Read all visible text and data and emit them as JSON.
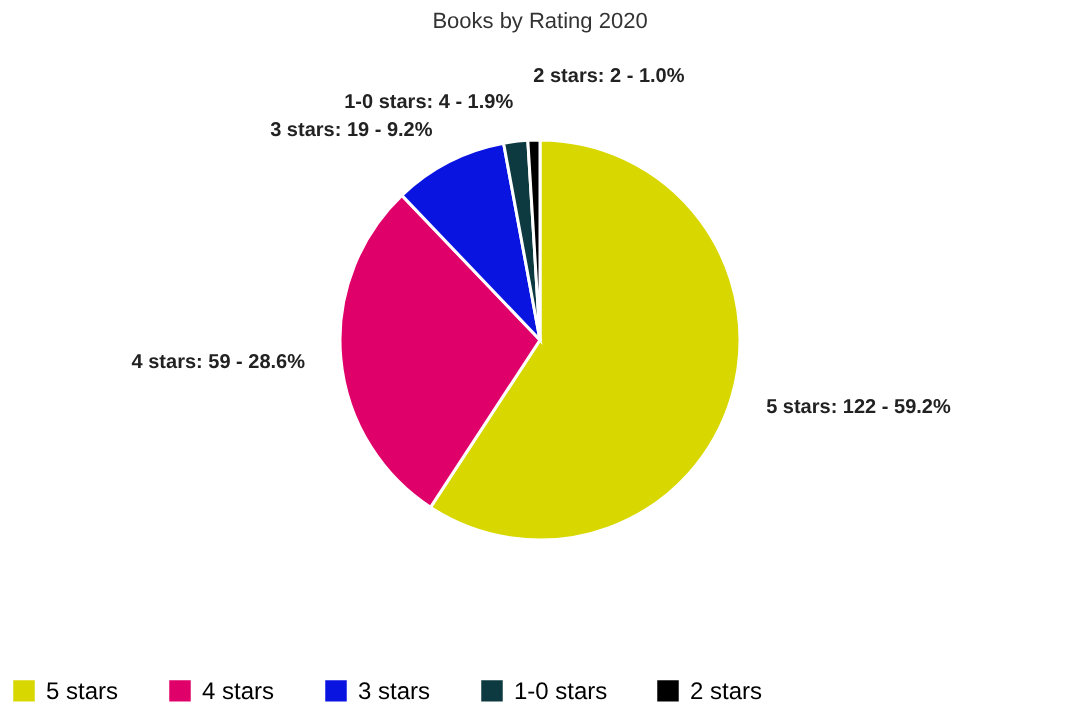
{
  "chart_data": {
    "type": "pie",
    "title": "Books by Rating 2020",
    "categories": [
      "5 stars",
      "4 stars",
      "3 stars",
      "1-0 stars",
      "2 stars"
    ],
    "values": [
      122,
      59,
      19,
      4,
      2
    ],
    "colors": [
      "#d8d800",
      "#e0006a",
      "#0a14e0",
      "#0d3a40",
      "#000000"
    ],
    "value_labels": [
      "5 stars: 122 - 59.2%",
      "4 stars: 59 - 28.6%",
      "3 stars: 19 - 9.2%",
      "1-0 stars: 4 - 1.9%",
      "2 stars: 2 - 1.0%"
    ],
    "legend": "bottom"
  }
}
